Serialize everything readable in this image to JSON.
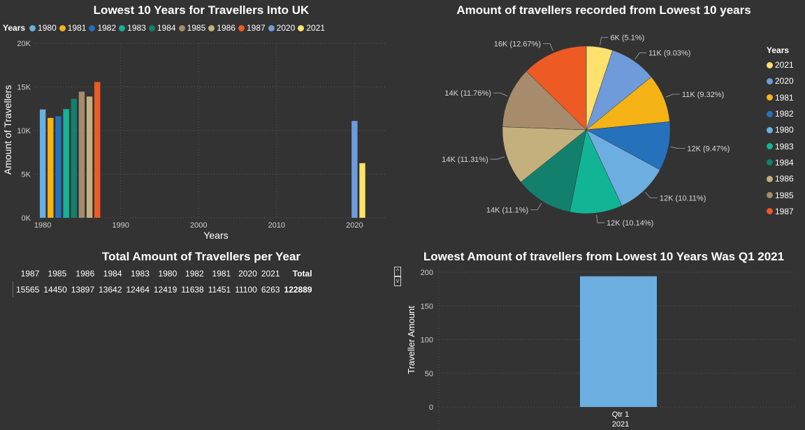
{
  "colors": {
    "1980": "#6CAEE0",
    "1981": "#F5B316",
    "1982": "#2671BB",
    "1983": "#12B496",
    "1984": "#13806D",
    "1985": "#A68C6C",
    "1986": "#C4B07D",
    "1987": "#EE5A24",
    "2020": "#6F9BDA",
    "2021": "#FCE16C"
  },
  "bar_chart": {
    "title": "Lowest 10 Years for Travellers Into UK",
    "legend_title": "Years",
    "legend": [
      "1980",
      "1981",
      "1982",
      "1983",
      "1984",
      "1985",
      "1986",
      "1987",
      "2020",
      "2021"
    ],
    "y_axis_label": "Amount of Travellers",
    "x_axis_label": "Years",
    "y_ticks": [
      "0K",
      "5K",
      "10K",
      "15K",
      "20K"
    ],
    "x_ticks": [
      "1980",
      "1990",
      "2000",
      "2010",
      "2020"
    ]
  },
  "pie_chart": {
    "title": "Amount of travellers recorded from Lowest 10 years",
    "legend_title": "Years",
    "legend": [
      "2021",
      "2020",
      "1981",
      "1982",
      "1980",
      "1983",
      "1984",
      "1986",
      "1985",
      "1987"
    ]
  },
  "table": {
    "title": "Total Amount of Travellers per Year",
    "headers": [
      "1987",
      "1985",
      "1986",
      "1984",
      "1983",
      "1980",
      "1982",
      "1981",
      "2020",
      "2021",
      "Total"
    ],
    "values": [
      "15565",
      "14450",
      "13897",
      "13642",
      "12464",
      "12419",
      "11638",
      "11451",
      "11100",
      "6263",
      "122889"
    ],
    "scroll_up": "^",
    "scroll_down": "v"
  },
  "quarter_chart": {
    "title": "Lowest Amount of travellers from Lowest 10 Years Was Q1 2021",
    "y_axis_label": "Traveller Amount",
    "y_ticks": [
      "0",
      "50",
      "100",
      "150",
      "200"
    ],
    "x_label_line1": "Qtr 1",
    "x_label_line2": "2021"
  },
  "chart_data": [
    {
      "type": "bar",
      "title": "Lowest 10 Years for Travellers Into UK",
      "xlabel": "Years",
      "ylabel": "Amount of Travellers",
      "x": [
        1980,
        1981,
        1982,
        1983,
        1984,
        1985,
        1986,
        1987,
        2020,
        2021
      ],
      "values": [
        12419,
        11451,
        11638,
        12464,
        13642,
        14450,
        13897,
        15565,
        11100,
        6263
      ],
      "ylim": [
        0,
        20000
      ],
      "xlim": [
        1979,
        2024
      ],
      "grid": true
    },
    {
      "type": "pie",
      "title": "Amount of travellers recorded from Lowest 10 years",
      "labels": [
        "2021",
        "2020",
        "1981",
        "1982",
        "1980",
        "1983",
        "1984",
        "1986",
        "1985",
        "1987"
      ],
      "values": [
        6263,
        11100,
        11451,
        11638,
        12419,
        12464,
        13642,
        13897,
        14450,
        15565
      ],
      "data_labels": [
        "6K (5.1%)",
        "11K (9.03%)",
        "11K (9.32%)",
        "12K (9.47%)",
        "12K (10.11%)",
        "12K (10.14%)",
        "14K (11.1%)",
        "14K (11.31%)",
        "14K (11.76%)",
        "16K (12.67%)"
      ],
      "legend_position": "right"
    },
    {
      "type": "table",
      "title": "Total Amount of Travellers per Year",
      "columns": [
        "1987",
        "1985",
        "1986",
        "1984",
        "1983",
        "1980",
        "1982",
        "1981",
        "2020",
        "2021",
        "Total"
      ],
      "rows": [
        [
          15565,
          14450,
          13897,
          13642,
          12464,
          12419,
          11638,
          11451,
          11100,
          6263,
          122889
        ]
      ]
    },
    {
      "type": "bar",
      "title": "Lowest Amount of travellers from Lowest 10 Years Was Q1 2021",
      "ylabel": "Traveller Amount",
      "categories": [
        "Qtr 1 2021"
      ],
      "values": [
        194
      ],
      "ylim": [
        0,
        200
      ],
      "grid": true
    }
  ]
}
